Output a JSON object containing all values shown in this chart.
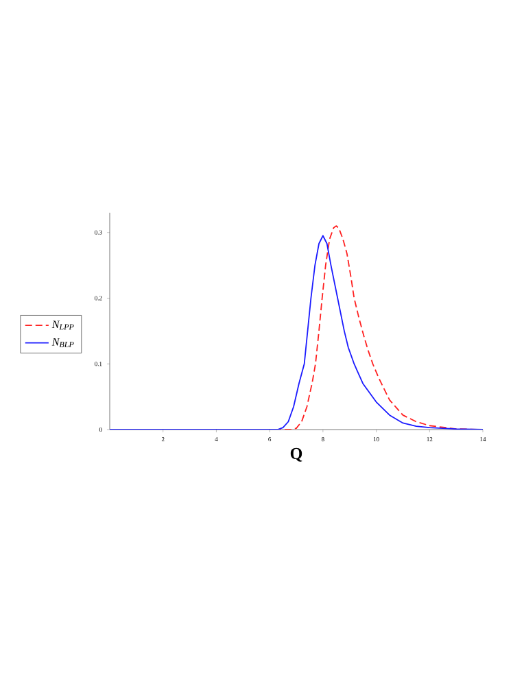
{
  "chart_data": {
    "type": "line",
    "xlabel": "Q",
    "xlim": [
      0,
      14
    ],
    "ylim": [
      0,
      0.33
    ],
    "xticks": [
      2,
      4,
      6,
      8,
      10,
      12,
      14
    ],
    "yticks": [
      0,
      0.1,
      0.2,
      0.3
    ],
    "grid": false,
    "legend": "left",
    "marker": "none",
    "series": [
      {
        "name": "N$_{LPP}$",
        "color": "#ff2020",
        "line_style": "dashed",
        "x": [
          0,
          6.8,
          7.0,
          7.2,
          7.4,
          7.6,
          7.72,
          7.85,
          7.97,
          8.1,
          8.25,
          8.4,
          8.5,
          8.6,
          8.75,
          8.9,
          9.05,
          9.17,
          9.35,
          9.55,
          9.7,
          9.87,
          10.1,
          10.5,
          11,
          11.5,
          12,
          13,
          14
        ],
        "values": [
          0,
          0,
          0.002,
          0.012,
          0.035,
          0.072,
          0.1,
          0.15,
          0.2,
          0.25,
          0.29,
          0.307,
          0.31,
          0.306,
          0.29,
          0.268,
          0.232,
          0.2,
          0.17,
          0.14,
          0.12,
          0.1,
          0.078,
          0.045,
          0.022,
          0.012,
          0.006,
          0.001,
          0
        ]
      },
      {
        "name": "N$_{BLP}$",
        "color": "#1a1aff",
        "line_style": "solid",
        "x": [
          0,
          6.3,
          6.5,
          6.7,
          6.9,
          7.1,
          7.3,
          7.45,
          7.55,
          7.7,
          7.85,
          8.0,
          8.15,
          8.3,
          8.55,
          8.8,
          8.95,
          9.17,
          9.3,
          9.5,
          10.0,
          10.5,
          11,
          11.5,
          12,
          13,
          14
        ],
        "values": [
          0,
          0,
          0.003,
          0.012,
          0.035,
          0.07,
          0.1,
          0.16,
          0.2,
          0.25,
          0.283,
          0.295,
          0.283,
          0.25,
          0.2,
          0.15,
          0.125,
          0.1,
          0.088,
          0.07,
          0.042,
          0.022,
          0.01,
          0.005,
          0.003,
          0.001,
          0
        ]
      }
    ]
  }
}
